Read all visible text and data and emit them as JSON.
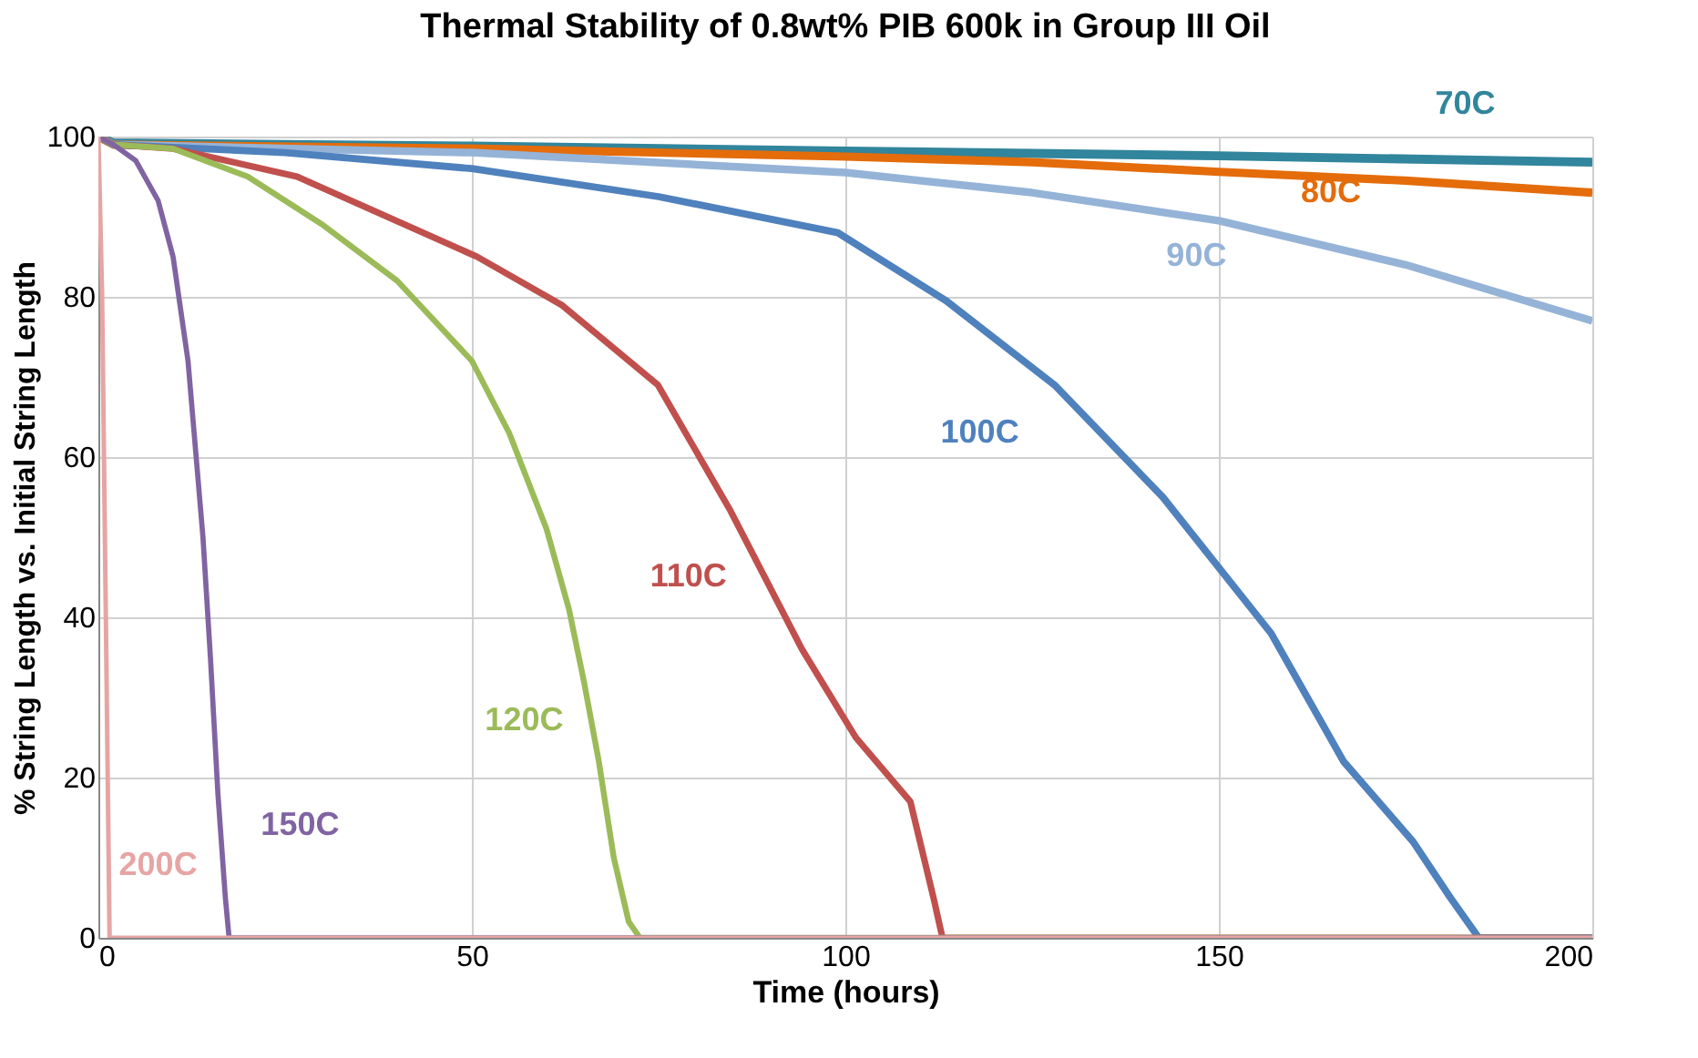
{
  "chart_data": {
    "type": "line",
    "title": "Thermal Stability of 0.8wt% PIB 600k in Group III Oil",
    "xlabel": "Time (hours)",
    "ylabel": "% String Length vs. Initial String Length",
    "xlim": [
      0,
      200
    ],
    "ylim": [
      0,
      100
    ],
    "xticks": [
      0,
      50,
      100,
      150,
      200
    ],
    "yticks": [
      0,
      20,
      40,
      60,
      80,
      100
    ],
    "grid": true,
    "legend": false,
    "marker": "none",
    "line_style": "solid",
    "series": [
      {
        "name": "70C",
        "color": "#31859c",
        "x": [
          0,
          2,
          50,
          100,
          150,
          200
        ],
        "values": [
          100,
          99.2,
          98.8,
          98.2,
          97.6,
          96.8
        ]
      },
      {
        "name": "80C",
        "color": "#e46c0a",
        "x": [
          0,
          2,
          50,
          100,
          125,
          150,
          175,
          200
        ],
        "values": [
          100,
          99,
          98.5,
          97.5,
          96.8,
          95.6,
          94.5,
          93
        ]
      },
      {
        "name": "90C",
        "color": "#95b3d7",
        "x": [
          0,
          2,
          50,
          100,
          125,
          150,
          175,
          200
        ],
        "values": [
          100,
          99,
          98,
          95.5,
          93,
          89.5,
          84,
          77
        ]
      },
      {
        "name": "100C",
        "color": "#4f81bd",
        "x": [
          0,
          2,
          25,
          50,
          75,
          99,
          113.5,
          128,
          142.5,
          157,
          166.7,
          176,
          181,
          184.8,
          200
        ],
        "values": [
          100,
          99,
          98,
          96,
          92.5,
          88,
          79.5,
          69,
          55,
          38,
          22,
          12,
          5,
          0,
          0
        ]
      },
      {
        "name": "110C",
        "color": "#c0504d",
        "x": [
          0,
          2,
          10,
          26.6,
          50.7,
          62,
          74.9,
          84.5,
          94.2,
          101.4,
          108.7,
          111.8,
          113,
          200
        ],
        "values": [
          100,
          99,
          98.5,
          95,
          85,
          79,
          69,
          53.5,
          36,
          25,
          17,
          5,
          0,
          0
        ]
      },
      {
        "name": "120C",
        "color": "#9bbb59",
        "x": [
          0,
          2,
          10,
          20,
          30,
          40,
          50,
          55,
          60,
          63,
          65,
          67,
          69,
          71,
          72.5,
          200
        ],
        "values": [
          100,
          99,
          98.5,
          95,
          89,
          82,
          72,
          63,
          51,
          41,
          32,
          22,
          10,
          2,
          0,
          0
        ]
      },
      {
        "name": "150C",
        "color": "#8064a2",
        "x": [
          0,
          2,
          5,
          8,
          10,
          12,
          14,
          15,
          16,
          17,
          17.5,
          200
        ],
        "values": [
          100,
          99,
          97,
          92,
          85,
          72,
          50,
          35,
          18,
          5,
          0,
          0
        ]
      },
      {
        "name": "200C",
        "color": "#e6a5a4",
        "x": [
          0,
          0.5,
          1,
          1.5,
          200
        ],
        "values": [
          100,
          80,
          40,
          0,
          0
        ]
      }
    ]
  }
}
